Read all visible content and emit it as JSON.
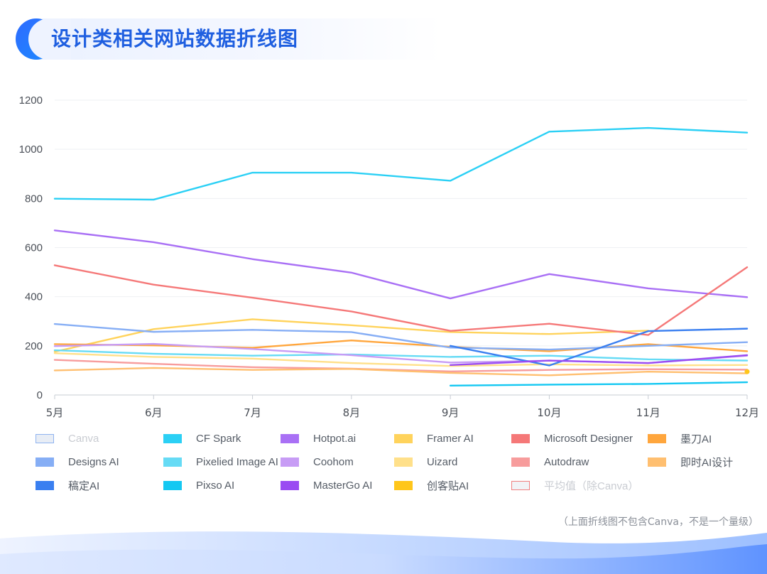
{
  "header": {
    "title": "设计类相关网站数据折线图"
  },
  "footnote": "（上面折线图不包含Canva，不是一个量级）",
  "chart_data": {
    "type": "line",
    "title": "设计类相关网站数据折线图",
    "categories": [
      "5月",
      "6月",
      "7月",
      "8月",
      "9月",
      "10月",
      "11月",
      "12月"
    ],
    "ylim": [
      0,
      1200
    ],
    "yticks": [
      0,
      200,
      400,
      600,
      800,
      1000,
      1200
    ],
    "grid": true,
    "legend_position": "bottom",
    "series": [
      {
        "name": "Canva",
        "values": [
          null,
          null,
          null,
          null,
          null,
          null,
          null,
          null
        ],
        "color": "#e8edf5",
        "swatch_outline": "#8fb3f0",
        "muted": true
      },
      {
        "name": "CF Spark",
        "values": [
          799,
          795,
          905,
          905,
          872,
          1072,
          1087,
          1068
        ],
        "color": "#2bd0f5"
      },
      {
        "name": "Hotpot.ai",
        "values": [
          670,
          622,
          553,
          498,
          393,
          492,
          434,
          398
        ],
        "color": "#a970f5"
      },
      {
        "name": "Framer AI",
        "values": [
          176,
          268,
          308,
          284,
          256,
          248,
          262,
          null
        ],
        "color": "#ffd35c"
      },
      {
        "name": "Microsoft Designer",
        "values": [
          528,
          449,
          396,
          340,
          261,
          290,
          244,
          520
        ],
        "color": "#f57878"
      },
      {
        "name": "墨刀AI",
        "values": [
          207,
          202,
          192,
          222,
          196,
          178,
          207,
          178
        ],
        "color": "#ffa63d"
      },
      {
        "name": "Designs AI",
        "values": [
          289,
          257,
          265,
          256,
          193,
          185,
          200,
          215
        ],
        "color": "#86aef5"
      },
      {
        "name": "Pixelied Image AI",
        "values": [
          182,
          168,
          160,
          165,
          155,
          160,
          145,
          140
        ],
        "color": "#66dbf5"
      },
      {
        "name": "Coohom",
        "values": [
          199,
          208,
          187,
          162,
          132,
          140,
          130,
          160
        ],
        "color": "#c79cf5"
      },
      {
        "name": "Uizard",
        "values": [
          170,
          155,
          148,
          130,
          118,
          125,
          120,
          122
        ],
        "color": "#ffe08a"
      },
      {
        "name": "Autodraw",
        "values": [
          143,
          127,
          113,
          107,
          96,
          102,
          105,
          103
        ],
        "color": "#f79c9c"
      },
      {
        "name": "即时AI设计",
        "values": [
          100,
          110,
          102,
          106,
          90,
          80,
          95,
          88
        ],
        "color": "#ffbf70"
      },
      {
        "name": "稿定AI",
        "values": [
          null,
          null,
          null,
          null,
          200,
          120,
          260,
          270
        ],
        "color": "#3a7ff0"
      },
      {
        "name": "Pixso AI",
        "values": [
          null,
          null,
          null,
          null,
          38,
          42,
          45,
          52
        ],
        "color": "#14c8f2"
      },
      {
        "name": "MasterGo AI",
        "values": [
          null,
          null,
          null,
          null,
          122,
          140,
          130,
          162
        ],
        "color": "#9a4cf2"
      },
      {
        "name": "创客贴AI",
        "values": [
          null,
          null,
          null,
          null,
          null,
          null,
          null,
          95
        ],
        "color": "#ffc61a"
      },
      {
        "name": "平均值（除Canva）",
        "values": [
          null,
          null,
          null,
          null,
          null,
          null,
          null,
          null
        ],
        "color": "#f1f3f6",
        "swatch_outline": "#f08080",
        "muted": true
      }
    ]
  }
}
